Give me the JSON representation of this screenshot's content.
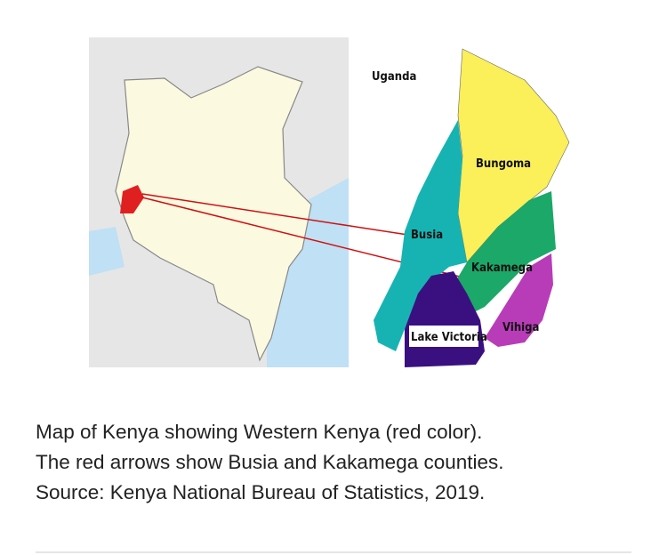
{
  "map_labels": {
    "uganda": "Uganda",
    "bungoma": "Bungoma",
    "busia": "Busia",
    "kakamega": "Kakamega",
    "vihiga": "Vihiga",
    "lake_victoria": "Lake Victoria"
  },
  "caption": {
    "lines": [
      "Map of Kenya showing Western Kenya (red color).",
      "The red arrows show Busia and Kakamega counties.",
      "Source: Kenya National Bureau of Statistics, 2019."
    ]
  }
}
